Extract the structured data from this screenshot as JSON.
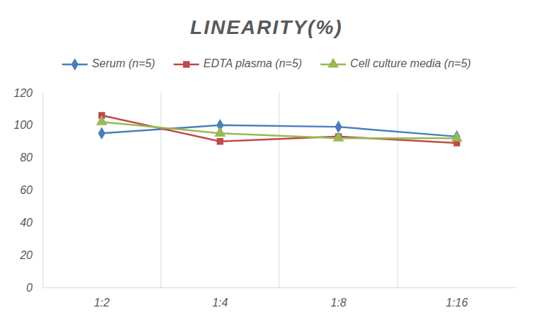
{
  "chart_data": {
    "type": "line",
    "title": "LINEARITY(%)",
    "categories": [
      "1:2",
      "1:4",
      "1:8",
      "1:16"
    ],
    "series": [
      {
        "name": "Serum (n=5)",
        "color": "#4a7ebb",
        "marker": "diamond",
        "values": [
          95,
          100,
          99,
          93
        ]
      },
      {
        "name": "EDTA plasma (n=5)",
        "color": "#be4b48",
        "marker": "square",
        "values": [
          106,
          90,
          93,
          89
        ]
      },
      {
        "name": "Cell culture media (n=5)",
        "color": "#98b954",
        "marker": "triangle",
        "values": [
          102,
          95,
          92,
          92
        ]
      }
    ],
    "ylim": [
      0,
      120
    ],
    "yticks": [
      0,
      20,
      40,
      60,
      80,
      100,
      120
    ],
    "grid": true,
    "legend": "top"
  }
}
